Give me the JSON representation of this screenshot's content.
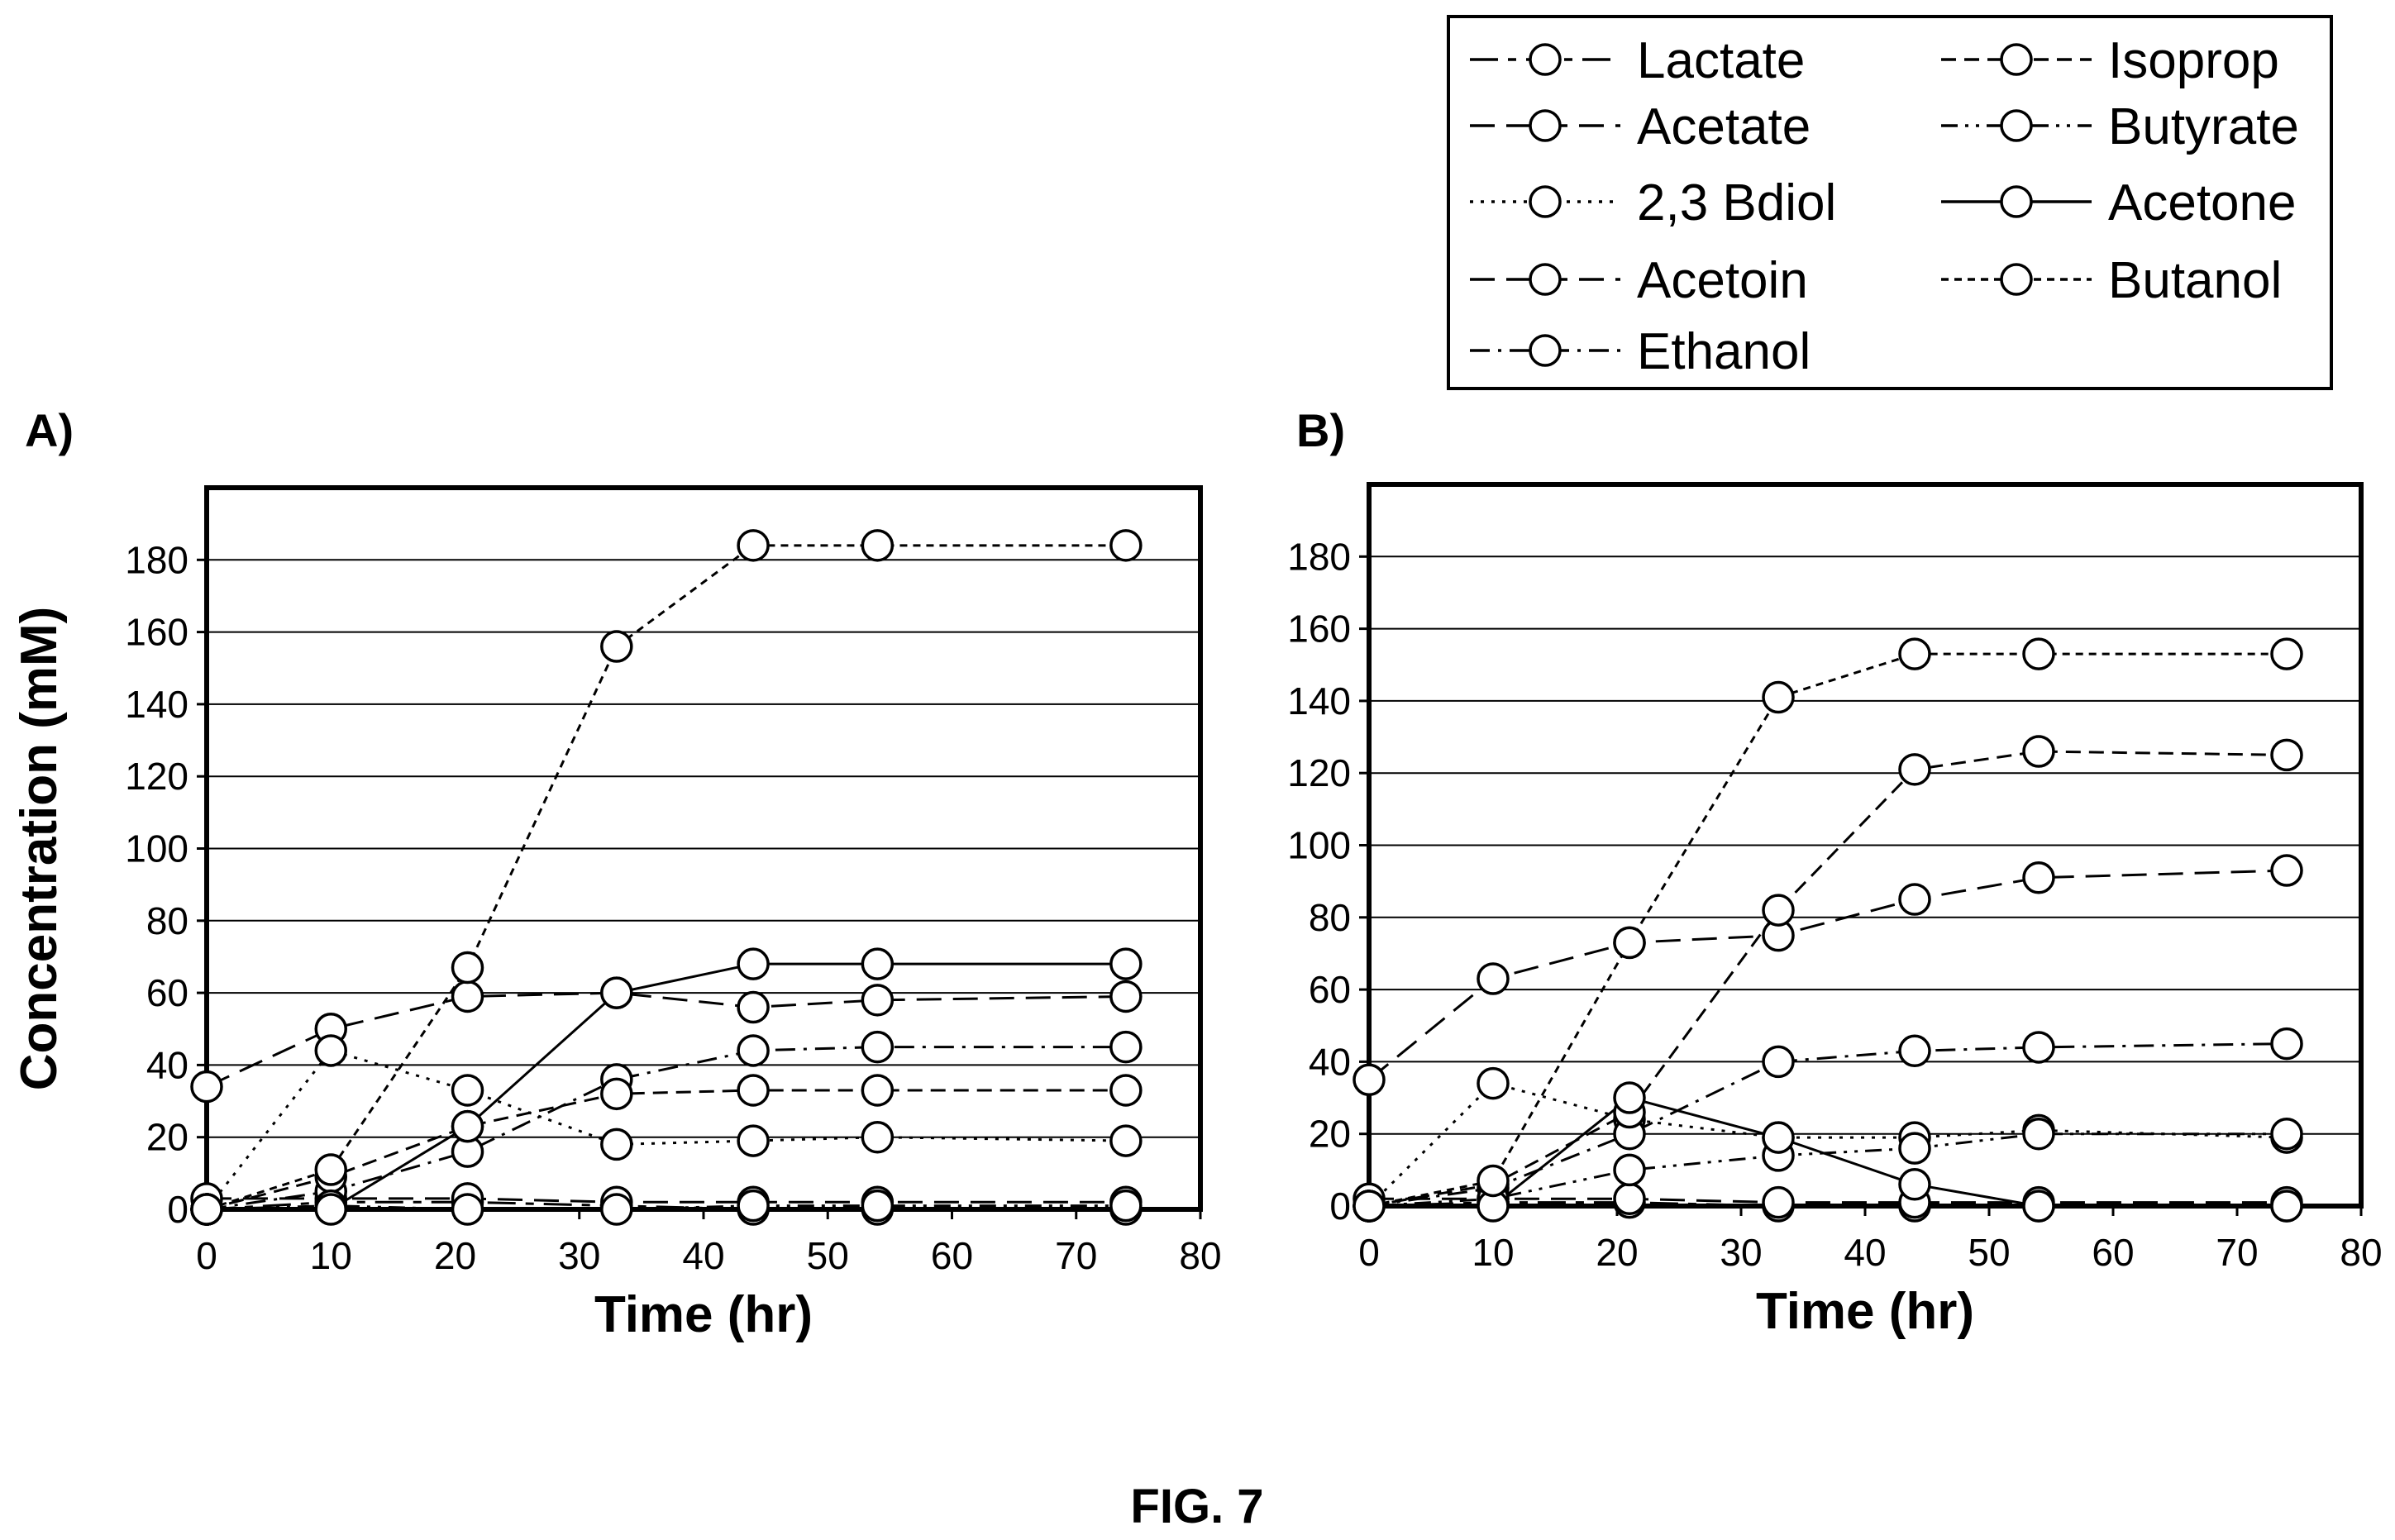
{
  "figure_caption": "FIG. 7",
  "legend": [
    {
      "name": "Lactate",
      "dash": "long-short"
    },
    {
      "name": "Acetate",
      "dash": "long"
    },
    {
      "name": "2,3 Bdiol",
      "dash": "dot"
    },
    {
      "name": "Acetoin",
      "dash": "long"
    },
    {
      "name": "Ethanol",
      "dash": "dash-dot"
    },
    {
      "name": "Isoprop",
      "dash": "medium"
    },
    {
      "name": "Butyrate",
      "dash": "dash-dot-dot"
    },
    {
      "name": "Acetone",
      "dash": "solid"
    },
    {
      "name": "Butanol",
      "dash": "short"
    }
  ],
  "chart_data": [
    {
      "type": "line",
      "panel_label": "A)",
      "xlabel": "Time (hr)",
      "ylabel": "Concentration (mM)",
      "xlim": [
        0,
        80
      ],
      "ylim": [
        0,
        200
      ],
      "xticks": [
        0,
        10,
        20,
        30,
        40,
        50,
        60,
        70,
        80
      ],
      "yticks": [
        0,
        20,
        40,
        60,
        80,
        100,
        120,
        140,
        160,
        180
      ],
      "grid": "horizontal",
      "x": [
        0,
        10,
        21,
        33,
        44,
        54,
        74
      ],
      "series": [
        {
          "name": "Lactate",
          "values": [
            0,
            2,
            2,
            1,
            0,
            0,
            0
          ]
        },
        {
          "name": "Acetate",
          "values": [
            34,
            50,
            59,
            60,
            56,
            58,
            59
          ]
        },
        {
          "name": "2,3 Bdiol",
          "values": [
            0,
            44,
            33,
            18,
            19,
            20,
            19
          ]
        },
        {
          "name": "Acetoin",
          "values": [
            3,
            3,
            3,
            2,
            2,
            2,
            2
          ]
        },
        {
          "name": "Ethanol",
          "values": [
            0,
            5,
            16,
            36,
            44,
            45,
            45
          ]
        },
        {
          "name": "Isoprop",
          "values": [
            0,
            9,
            23,
            32,
            33,
            33,
            33
          ]
        },
        {
          "name": "Butyrate",
          "values": [
            0,
            1,
            0,
            0,
            1,
            1,
            1
          ]
        },
        {
          "name": "Acetone",
          "values": [
            0,
            0,
            23,
            60,
            68,
            68,
            68
          ]
        },
        {
          "name": "Butanol",
          "values": [
            0,
            11,
            67,
            156,
            184,
            184,
            184
          ]
        }
      ]
    },
    {
      "type": "line",
      "panel_label": "B)",
      "xlabel": "Time (hr)",
      "ylabel": "",
      "xlim": [
        0,
        80
      ],
      "ylim": [
        0,
        200
      ],
      "xticks": [
        0,
        10,
        20,
        30,
        40,
        50,
        60,
        70,
        80
      ],
      "yticks": [
        0,
        20,
        40,
        60,
        80,
        100,
        120,
        140,
        160,
        180
      ],
      "grid": "horizontal",
      "x": [
        0,
        10,
        21,
        33,
        44,
        54,
        74
      ],
      "series": [
        {
          "name": "Lactate",
          "values": [
            0,
            1,
            1,
            0,
            0,
            0,
            0
          ]
        },
        {
          "name": "Acetate",
          "values": [
            35,
            63,
            73,
            75,
            85,
            91,
            93
          ]
        },
        {
          "name": "2,3 Bdiol",
          "values": [
            0,
            34,
            24,
            19,
            19,
            21,
            19
          ]
        },
        {
          "name": "Acetoin",
          "values": [
            2,
            2,
            2,
            1,
            1,
            1,
            1
          ]
        },
        {
          "name": "Ethanol",
          "values": [
            0,
            5,
            20,
            40,
            43,
            44,
            45
          ]
        },
        {
          "name": "Isoprop",
          "values": [
            0,
            6,
            26,
            82,
            121,
            126,
            125
          ]
        },
        {
          "name": "Butyrate",
          "values": [
            0,
            2,
            10,
            14,
            16,
            20,
            20
          ]
        },
        {
          "name": "Acetone",
          "values": [
            0,
            0,
            30,
            19,
            6,
            0,
            0
          ]
        },
        {
          "name": "Butanol",
          "values": [
            0,
            7,
            73,
            141,
            153,
            153,
            153
          ]
        }
      ]
    }
  ]
}
